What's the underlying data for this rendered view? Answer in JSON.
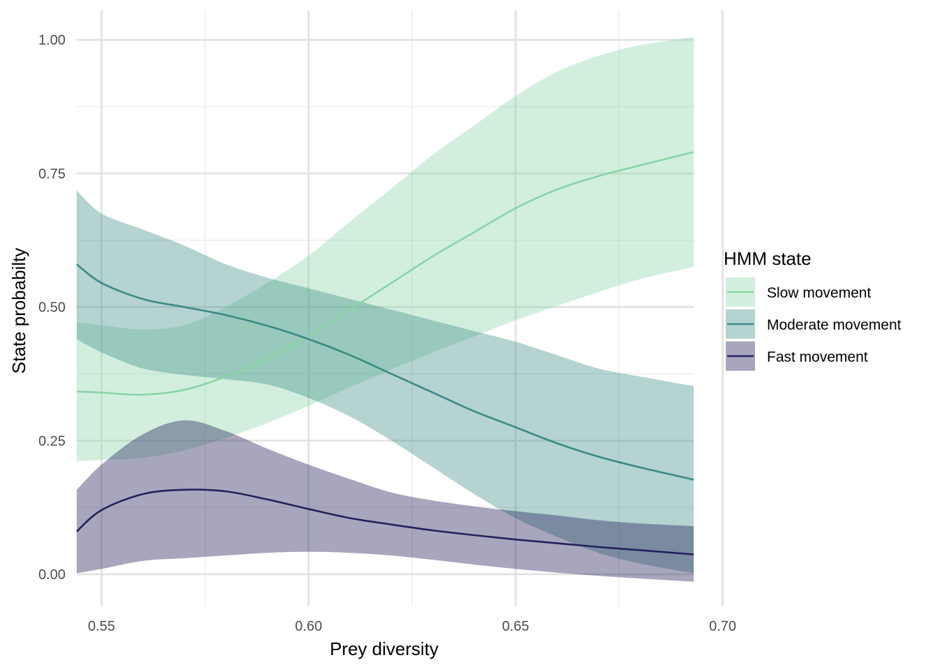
{
  "chart_data": {
    "type": "line",
    "xlabel": "Prey diversity",
    "ylabel": "State probabilty",
    "xlim": [
      0.544,
      0.693
    ],
    "ylim": [
      -0.06,
      1.055
    ],
    "x_ticks": [
      0.55,
      0.6,
      0.65,
      0.7
    ],
    "x_tick_labels": [
      "0.55",
      "0.60",
      "0.65",
      "0.70"
    ],
    "x_minor_ticks": [
      0.575,
      0.625,
      0.675
    ],
    "y_ticks": [
      0.0,
      0.25,
      0.5,
      0.75,
      1.0
    ],
    "y_tick_labels": [
      "0.00",
      "0.25",
      "0.50",
      "0.75",
      "1.00"
    ],
    "y_minor_ticks": [
      0.125,
      0.375,
      0.625,
      0.875
    ],
    "grid": true,
    "legend": {
      "title": "HMM state",
      "placement": "right"
    },
    "x": [
      0.544,
      0.55,
      0.56,
      0.57,
      0.58,
      0.59,
      0.6,
      0.61,
      0.62,
      0.63,
      0.64,
      0.65,
      0.66,
      0.67,
      0.68,
      0.693
    ],
    "series": [
      {
        "name": "Slow movement",
        "color": "#8ad4a6",
        "fill_opacity": 0.38,
        "mean": [
          0.342,
          0.34,
          0.336,
          0.345,
          0.37,
          0.405,
          0.445,
          0.495,
          0.545,
          0.595,
          0.64,
          0.685,
          0.72,
          0.745,
          0.765,
          0.79
        ],
        "lower": [
          0.212,
          0.214,
          0.218,
          0.232,
          0.255,
          0.283,
          0.315,
          0.35,
          0.383,
          0.415,
          0.445,
          0.475,
          0.502,
          0.528,
          0.552,
          0.575
        ],
        "upper": [
          0.472,
          0.466,
          0.458,
          0.466,
          0.5,
          0.545,
          0.596,
          0.66,
          0.722,
          0.785,
          0.84,
          0.895,
          0.94,
          0.97,
          0.99,
          1.005
        ]
      },
      {
        "name": "Moderate movement",
        "color": "#3a8b85",
        "fill_opacity": 0.38,
        "mean": [
          0.58,
          0.545,
          0.515,
          0.5,
          0.485,
          0.465,
          0.44,
          0.41,
          0.375,
          0.34,
          0.305,
          0.275,
          0.245,
          0.22,
          0.2,
          0.177
        ],
        "lower": [
          0.44,
          0.415,
          0.385,
          0.373,
          0.365,
          0.355,
          0.33,
          0.295,
          0.25,
          0.2,
          0.15,
          0.105,
          0.07,
          0.04,
          0.02,
          0.002
        ],
        "upper": [
          0.718,
          0.675,
          0.645,
          0.615,
          0.58,
          0.555,
          0.535,
          0.515,
          0.495,
          0.475,
          0.455,
          0.435,
          0.41,
          0.385,
          0.37,
          0.352
        ]
      },
      {
        "name": "Fast movement",
        "color": "#24215a",
        "fill_opacity": 0.4,
        "mean": [
          0.08,
          0.12,
          0.15,
          0.158,
          0.155,
          0.14,
          0.122,
          0.105,
          0.093,
          0.082,
          0.073,
          0.065,
          0.058,
          0.051,
          0.045,
          0.037
        ],
        "lower": [
          0.002,
          0.01,
          0.025,
          0.03,
          0.035,
          0.04,
          0.042,
          0.04,
          0.035,
          0.027,
          0.018,
          0.01,
          0.003,
          -0.003,
          -0.008,
          -0.014
        ],
        "upper": [
          0.158,
          0.205,
          0.262,
          0.288,
          0.268,
          0.235,
          0.205,
          0.178,
          0.153,
          0.138,
          0.127,
          0.118,
          0.11,
          0.101,
          0.095,
          0.09
        ]
      }
    ]
  }
}
